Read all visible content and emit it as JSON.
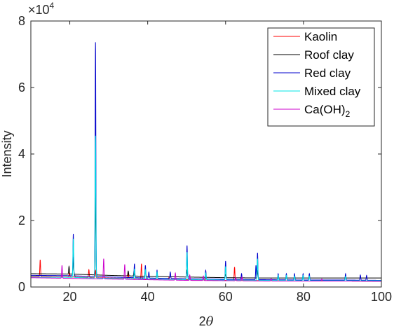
{
  "chart_data": {
    "type": "line",
    "title": "",
    "xlabel_main": "2",
    "xlabel_symbol": "θ",
    "ylabel": "Intensity",
    "y_exponent_base": "×10",
    "y_exponent_power": "4",
    "xlim": [
      10,
      100
    ],
    "ylim": [
      0,
      80000
    ],
    "x_ticks": [
      20,
      40,
      60,
      80,
      100
    ],
    "x_tick_labels": [
      "20",
      "40",
      "60",
      "80",
      "100"
    ],
    "y_ticks": [
      0,
      20000,
      40000,
      60000,
      80000
    ],
    "y_tick_labels": [
      "0",
      "2",
      "4",
      "6",
      "8"
    ],
    "grid": false,
    "legend_position": "top-right",
    "series": [
      {
        "name": "Kaolin",
        "name_sub": "",
        "color": "#ff0000",
        "baseline": [
          [
            10,
            3200
          ],
          [
            20,
            3000
          ],
          [
            30,
            2700
          ],
          [
            40,
            2400
          ],
          [
            50,
            2200
          ],
          [
            60,
            2000
          ],
          [
            70,
            1900
          ],
          [
            80,
            1800
          ],
          [
            90,
            1800
          ],
          [
            100,
            1700
          ]
        ],
        "peaks": [
          [
            12.4,
            8200
          ],
          [
            19.9,
            4200
          ],
          [
            21.2,
            3800
          ],
          [
            24.9,
            5200
          ],
          [
            26.6,
            5000
          ],
          [
            35.0,
            4000
          ],
          [
            38.4,
            7000
          ],
          [
            45.5,
            3000
          ],
          [
            55.0,
            2800
          ],
          [
            62.3,
            6000
          ]
        ]
      },
      {
        "name": "Roof clay",
        "name_sub": "",
        "color": "#000000",
        "baseline": [
          [
            10,
            4000
          ],
          [
            20,
            3900
          ],
          [
            30,
            3500
          ],
          [
            40,
            3200
          ],
          [
            50,
            3000
          ],
          [
            60,
            2800
          ],
          [
            70,
            2700
          ],
          [
            80,
            2700
          ],
          [
            90,
            2700
          ],
          [
            100,
            2700
          ]
        ],
        "peaks": [
          [
            19.8,
            6200
          ],
          [
            20.9,
            9000
          ],
          [
            26.6,
            30000
          ],
          [
            35.0,
            4800
          ],
          [
            36.5,
            4800
          ],
          [
            39.4,
            5000
          ],
          [
            50.1,
            5000
          ],
          [
            60.0,
            3800
          ],
          [
            68.2,
            4800
          ]
        ]
      },
      {
        "name": "Red clay",
        "name_sub": "",
        "color": "#0000cc",
        "baseline": [
          [
            10,
            3500
          ],
          [
            20,
            3400
          ],
          [
            30,
            3000
          ],
          [
            40,
            2700
          ],
          [
            50,
            2500
          ],
          [
            60,
            2300
          ],
          [
            70,
            2200
          ],
          [
            80,
            2100
          ],
          [
            90,
            2100
          ],
          [
            100,
            2000
          ]
        ],
        "peaks": [
          [
            20.9,
            16000
          ],
          [
            26.6,
            73600
          ],
          [
            36.6,
            7000
          ],
          [
            39.4,
            6500
          ],
          [
            40.3,
            4500
          ],
          [
            42.4,
            5000
          ],
          [
            45.8,
            4500
          ],
          [
            50.1,
            12500
          ],
          [
            54.9,
            5000
          ],
          [
            60.0,
            7800
          ],
          [
            64.1,
            4000
          ],
          [
            67.8,
            6500
          ],
          [
            68.2,
            10300
          ],
          [
            73.5,
            4000
          ],
          [
            75.6,
            4000
          ],
          [
            77.7,
            4000
          ],
          [
            79.9,
            4000
          ],
          [
            81.5,
            4000
          ],
          [
            90.8,
            4000
          ],
          [
            94.6,
            3600
          ],
          [
            96.2,
            3500
          ]
        ]
      },
      {
        "name": "Mixed clay",
        "name_sub": "",
        "color": "#00e5e5",
        "baseline": [
          [
            10,
            3000
          ],
          [
            20,
            2900
          ],
          [
            30,
            2600
          ],
          [
            40,
            2400
          ],
          [
            50,
            2200
          ],
          [
            60,
            2100
          ],
          [
            70,
            2000
          ],
          [
            80,
            1900
          ],
          [
            90,
            1900
          ],
          [
            100,
            1900
          ]
        ],
        "peaks": [
          [
            20.9,
            14500
          ],
          [
            26.6,
            45500
          ],
          [
            36.6,
            5500
          ],
          [
            39.4,
            5200
          ],
          [
            42.4,
            4500
          ],
          [
            50.1,
            10500
          ],
          [
            54.9,
            4200
          ],
          [
            60.0,
            6200
          ],
          [
            68.2,
            8500
          ],
          [
            73.5,
            3500
          ],
          [
            75.6,
            3500
          ],
          [
            77.7,
            3300
          ],
          [
            79.9,
            3500
          ],
          [
            81.5,
            3300
          ],
          [
            90.8,
            3200
          ]
        ]
      },
      {
        "name": "Ca(OH)",
        "name_sub": "2",
        "color": "#cc00cc",
        "baseline": [
          [
            10,
            2800
          ],
          [
            20,
            2600
          ],
          [
            30,
            2400
          ],
          [
            40,
            2200
          ],
          [
            50,
            2000
          ],
          [
            60,
            1900
          ],
          [
            70,
            1800
          ],
          [
            80,
            1800
          ],
          [
            90,
            1800
          ],
          [
            100,
            1700
          ]
        ],
        "peaks": [
          [
            18.0,
            6500
          ],
          [
            28.7,
            8500
          ],
          [
            34.1,
            6800
          ],
          [
            47.1,
            4200
          ],
          [
            50.8,
            3600
          ],
          [
            54.3,
            3300
          ],
          [
            62.6,
            2800
          ],
          [
            64.2,
            3000
          ],
          [
            71.7,
            2500
          ],
          [
            84.7,
            2400
          ]
        ]
      }
    ]
  }
}
